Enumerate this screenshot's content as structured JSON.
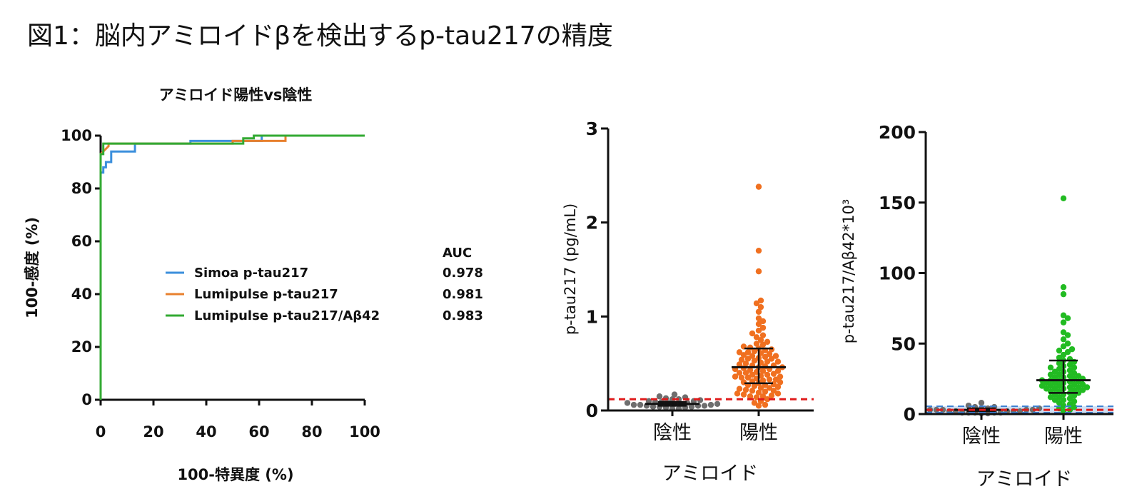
{
  "title": "図1：脳内アミロイドβを検出するp-tau217の精度",
  "chart_data": [
    {
      "type": "line",
      "title": "アミロイド陽性vs陰性",
      "xlabel": "100-特異度 (%)",
      "ylabel": "100-感度 (%)",
      "xlim": [
        0,
        100
      ],
      "ylim": [
        0,
        100
      ],
      "xticks": [
        "0",
        "20",
        "40",
        "60",
        "80",
        "100"
      ],
      "yticks": [
        "0",
        "20",
        "40",
        "60",
        "80",
        "100"
      ],
      "legend_header": "AUC",
      "legend_position": "center-right",
      "series": [
        {
          "name": "Simoa p-tau217",
          "auc": "0.978",
          "color": "#3b8fdc",
          "x": [
            0,
            0,
            1,
            1,
            2,
            2,
            4,
            4,
            13,
            13,
            34,
            34,
            51,
            51,
            61,
            61,
            100
          ],
          "y": [
            0,
            86,
            86,
            88,
            88,
            90,
            90,
            94,
            94,
            97,
            97,
            98,
            98,
            98,
            98,
            100,
            100
          ]
        },
        {
          "name": "Lumipulse p-tau217",
          "auc": "0.981",
          "color": "#e8802e",
          "x": [
            0,
            0,
            1,
            3,
            3,
            50,
            50,
            70,
            70,
            100
          ],
          "y": [
            0,
            93,
            94,
            96,
            97,
            97,
            98,
            98,
            100,
            100
          ]
        },
        {
          "name": "Lumipulse p-tau217/Aβ42",
          "auc": "0.983",
          "color": "#33aa33",
          "x": [
            0,
            0,
            1,
            1,
            8,
            8,
            54,
            54,
            58,
            58,
            100
          ],
          "y": [
            0,
            93,
            93,
            97,
            97,
            97,
            97,
            99,
            99,
            100,
            100
          ]
        }
      ]
    },
    {
      "type": "scatter",
      "ylabel": "p-tau217 (pg/mL)",
      "xlabel": "アミロイド",
      "categories": [
        "陰性",
        "陽性"
      ],
      "ylim": [
        0,
        3
      ],
      "yticks": [
        "0",
        "1",
        "2",
        "3"
      ],
      "cutoff": 0.12,
      "cutoff_color": "#e01b1b",
      "colors": [
        "#6e6e6e",
        "#f07020"
      ],
      "median": [
        0.07,
        0.46
      ],
      "iqr": [
        [
          0.05,
          0.09
        ],
        [
          0.29,
          0.66
        ]
      ],
      "values": [
        [
          0.17,
          0.15,
          0.14,
          0.13,
          0.12,
          0.12,
          0.11,
          0.1,
          0.1,
          0.09,
          0.09,
          0.08,
          0.08,
          0.08,
          0.07,
          0.07,
          0.07,
          0.06,
          0.06,
          0.06,
          0.05,
          0.05,
          0.05,
          0.04,
          0.04,
          0.04,
          0.03,
          0.03,
          0.02,
          0.02
        ],
        [
          2.38,
          1.7,
          1.48,
          1.17,
          1.14,
          1.1,
          1.05,
          0.98,
          0.95,
          0.92,
          0.88,
          0.85,
          0.82,
          0.8,
          0.78,
          0.75,
          0.73,
          0.71,
          0.7,
          0.68,
          0.67,
          0.66,
          0.65,
          0.64,
          0.63,
          0.62,
          0.61,
          0.6,
          0.59,
          0.58,
          0.57,
          0.56,
          0.55,
          0.54,
          0.53,
          0.52,
          0.51,
          0.5,
          0.49,
          0.48,
          0.47,
          0.46,
          0.46,
          0.45,
          0.44,
          0.43,
          0.42,
          0.41,
          0.4,
          0.39,
          0.38,
          0.37,
          0.36,
          0.35,
          0.34,
          0.33,
          0.32,
          0.31,
          0.3,
          0.29,
          0.28,
          0.27,
          0.26,
          0.25,
          0.24,
          0.23,
          0.22,
          0.21,
          0.2,
          0.19,
          0.18,
          0.17,
          0.16,
          0.15,
          0.14,
          0.12,
          0.1,
          0.08,
          0.06,
          0.05,
          0.62,
          0.55,
          0.48,
          0.44,
          0.4,
          0.36,
          0.33,
          0.3,
          0.27,
          0.24,
          0.21,
          0.18,
          0.15,
          0.35,
          0.52,
          0.58,
          0.42,
          0.38
        ]
      ]
    },
    {
      "type": "scatter",
      "ylabel": "p-tau217/Aβ42*10³",
      "xlabel": "アミロイド",
      "categories": [
        "陰性",
        "陽性"
      ],
      "ylim": [
        0,
        200
      ],
      "yticks": [
        "0",
        "50",
        "100",
        "150",
        "200"
      ],
      "cutoff": 3,
      "cutoff_color": "#e01b1b",
      "band_color": "#3b7fd0",
      "colors": [
        "#6e6e6e",
        "#22bb22"
      ],
      "median": [
        3,
        24
      ],
      "iqr": [
        [
          2,
          4
        ],
        [
          15,
          38
        ]
      ],
      "values": [
        [
          8,
          6,
          5,
          5,
          4,
          4,
          4,
          3,
          3,
          3,
          3,
          3,
          2,
          2,
          2,
          2,
          2,
          1,
          1,
          1,
          1,
          1,
          0.5,
          0.5
        ],
        [
          153,
          90,
          85,
          70,
          68,
          65,
          58,
          56,
          53,
          50,
          48,
          46,
          45,
          44,
          42,
          40,
          39,
          38,
          37,
          36,
          35,
          34,
          33,
          32,
          31,
          30,
          29,
          28,
          27,
          26,
          26,
          25,
          25,
          24,
          24,
          23,
          23,
          22,
          22,
          21,
          21,
          20,
          20,
          19,
          19,
          18,
          18,
          17,
          16,
          15,
          15,
          14,
          13,
          12,
          11,
          10,
          9,
          8,
          7,
          6,
          5,
          4,
          3,
          2,
          30,
          27,
          24,
          22,
          20,
          18,
          16,
          14,
          12,
          10,
          28,
          33,
          19,
          17
        ]
      ]
    }
  ]
}
